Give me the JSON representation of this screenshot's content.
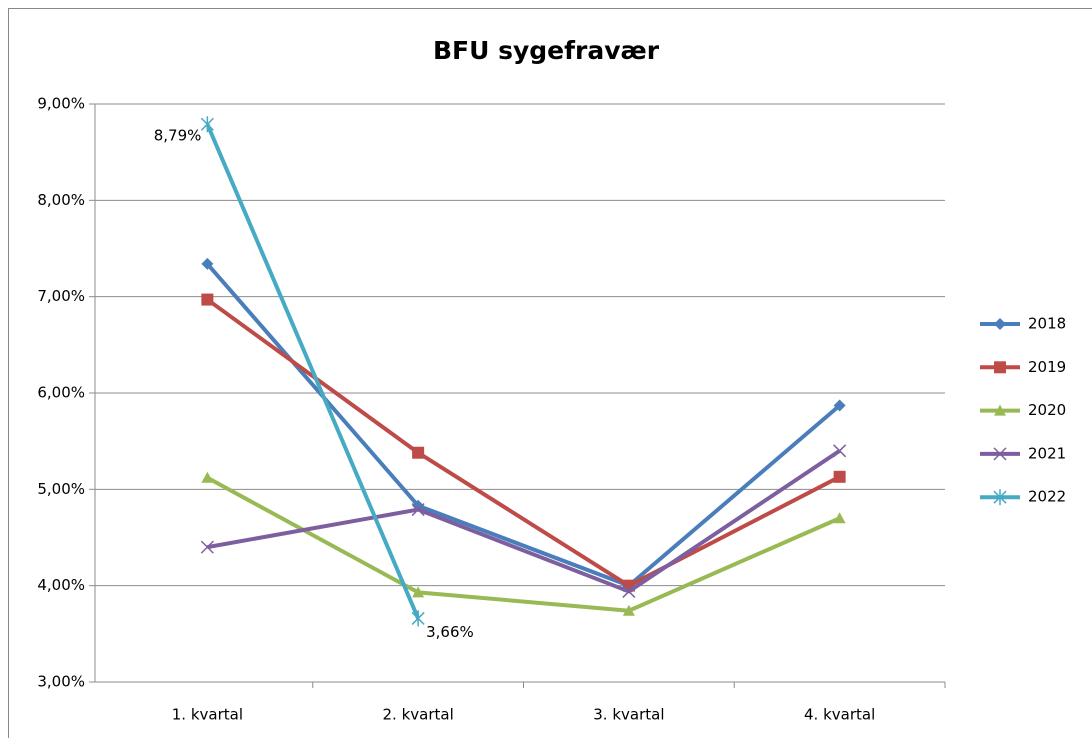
{
  "chart_data": {
    "type": "line",
    "title": "BFU sygefravær",
    "categories": [
      "1. kvartal",
      "2. kvartal",
      "3. kvartal",
      "4. kvartal"
    ],
    "series": [
      {
        "name": "2018",
        "color": "#4a7ebb",
        "marker": "diamond",
        "values": [
          7.34,
          4.83,
          4.0,
          5.87
        ]
      },
      {
        "name": "2019",
        "color": "#be4b48",
        "marker": "square",
        "values": [
          6.97,
          5.38,
          4.0,
          5.13
        ]
      },
      {
        "name": "2020",
        "color": "#98b954",
        "marker": "triangle",
        "values": [
          5.12,
          3.93,
          3.74,
          4.7
        ]
      },
      {
        "name": "2021",
        "color": "#7d5fa0",
        "marker": "x",
        "values": [
          4.4,
          4.79,
          3.94,
          5.4
        ]
      },
      {
        "name": "2022",
        "color": "#46aac5",
        "marker": "star",
        "values": [
          8.79,
          3.66,
          null,
          null
        ],
        "value_labels": [
          "8,79%",
          "3,66%",
          null,
          null
        ]
      }
    ],
    "ylim": [
      3,
      9
    ],
    "yticks": [
      {
        "value": 3,
        "label": "3,00%"
      },
      {
        "value": 4,
        "label": "4,00%"
      },
      {
        "value": 5,
        "label": "5,00%"
      },
      {
        "value": 6,
        "label": "6,00%"
      },
      {
        "value": 7,
        "label": "7,00%"
      },
      {
        "value": 8,
        "label": "8,00%"
      },
      {
        "value": 9,
        "label": "9,00%"
      }
    ],
    "grid": true,
    "legend": "right"
  }
}
